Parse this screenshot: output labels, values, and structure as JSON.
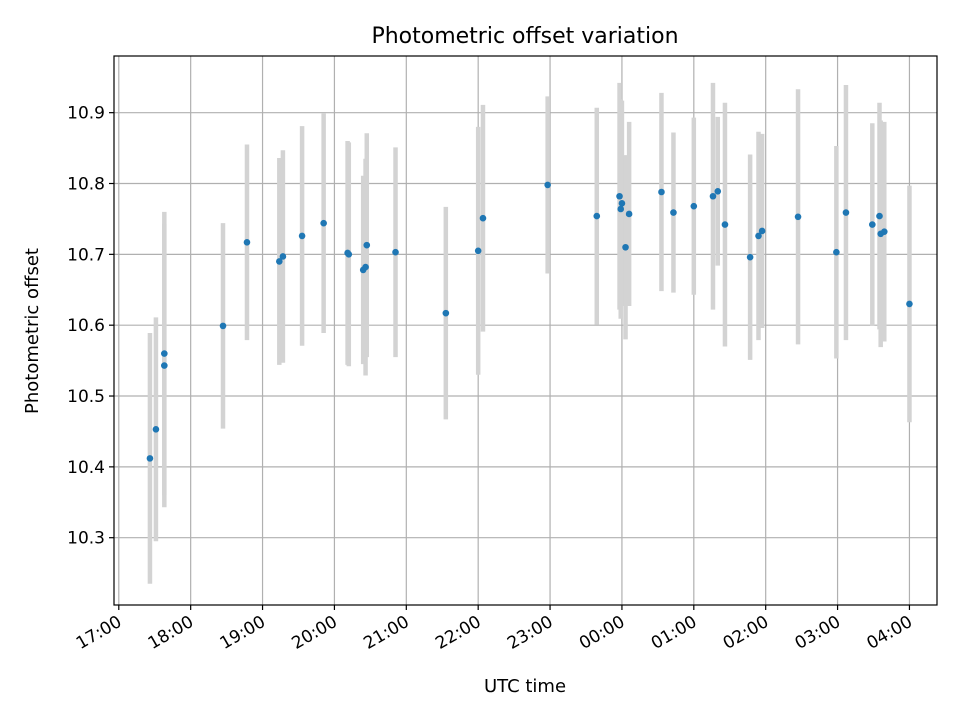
{
  "chart_data": {
    "type": "scatter",
    "title": "Photometric offset variation",
    "xlabel": "UTC time",
    "ylabel": "Photometric offset",
    "grid": true,
    "x_tick_labels": [
      "17:00",
      "18:00",
      "19:00",
      "20:00",
      "21:00",
      "22:00",
      "23:00",
      "00:00",
      "01:00",
      "02:00",
      "03:00",
      "04:00"
    ],
    "y_ticks": [
      10.3,
      10.4,
      10.5,
      10.6,
      10.7,
      10.8,
      10.9
    ],
    "y_tick_labels": [
      "10.3",
      "10.4",
      "10.5",
      "10.6",
      "10.7",
      "10.8",
      "10.9"
    ],
    "xlim": [
      "16:56",
      "04:23"
    ],
    "ylim": [
      10.205,
      10.98
    ],
    "colors": {
      "point": "#1f77b4",
      "errorbar": "#d3d3d3",
      "grid": "#b0b0b0"
    },
    "series": [
      {
        "x": [
          "17:26",
          "17:31",
          "17:38",
          "17:38",
          "18:27",
          "18:47",
          "19:14",
          "19:17",
          "19:33",
          "19:51",
          "20:11",
          "20:12",
          "20:24",
          "20:26",
          "20:27",
          "20:51",
          "21:33",
          "22:00",
          "22:04",
          "22:58",
          "23:39",
          "23:58",
          "23:59",
          "00:00",
          "00:03",
          "00:06",
          "00:33",
          "00:43",
          "01:00",
          "01:16",
          "01:20",
          "01:26",
          "01:47",
          "01:54",
          "01:57",
          "02:27",
          "02:59",
          "03:07",
          "03:29",
          "03:35",
          "03:36",
          "03:39",
          "04:00"
        ],
        "y": [
          10.412,
          10.453,
          10.56,
          10.543,
          10.599,
          10.717,
          10.69,
          10.697,
          10.726,
          10.744,
          10.702,
          10.7,
          10.678,
          10.682,
          10.713,
          10.703,
          10.617,
          10.705,
          10.751,
          10.798,
          10.754,
          10.782,
          10.764,
          10.772,
          10.71,
          10.757,
          10.788,
          10.759,
          10.768,
          10.782,
          10.789,
          10.742,
          10.696,
          10.726,
          10.733,
          10.753,
          10.703,
          10.759,
          10.742,
          10.754,
          10.729,
          10.732,
          10.63
        ],
        "err": [
          0.177,
          0.158,
          0.2,
          0.2,
          0.145,
          0.138,
          0.146,
          0.15,
          0.155,
          0.155,
          0.158,
          0.158,
          0.133,
          0.153,
          0.158,
          0.148,
          0.15,
          0.175,
          0.16,
          0.125,
          0.153,
          0.16,
          0.155,
          0.145,
          0.13,
          0.13,
          0.14,
          0.113,
          0.125,
          0.16,
          0.105,
          0.172,
          0.145,
          0.147,
          0.137,
          0.18,
          0.15,
          0.18,
          0.143,
          0.16,
          0.16,
          0.155,
          0.167
        ]
      }
    ]
  }
}
